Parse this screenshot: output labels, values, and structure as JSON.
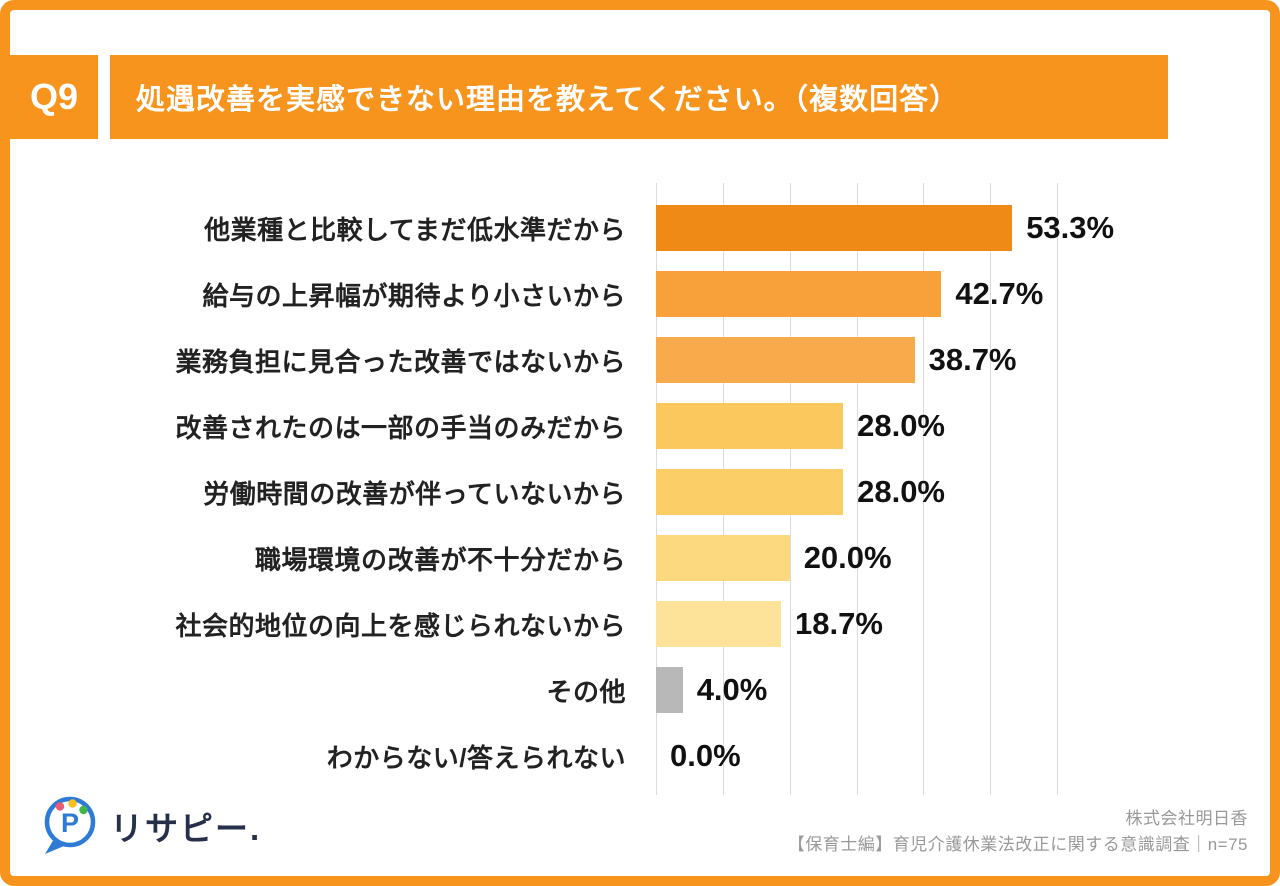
{
  "header": {
    "badge": "Q9",
    "title": "処遇改善を実感できない理由を教えてください。（複数回答）"
  },
  "colors": {
    "accent_orange": "#F7941D",
    "grid": "#DBDBDB",
    "label_text": "#222222",
    "value_text": "#111111",
    "footer_text": "#999999",
    "logo_blue": "#2E7BD6"
  },
  "chart_data": {
    "type": "bar",
    "orientation": "horizontal",
    "title": "処遇改善を実感できない理由を教えてください。（複数回答）",
    "categories": [
      "他業種と比較してまだ低水準だから",
      "給与の上昇幅が期待より小さいから",
      "業務負担に見合った改善ではないから",
      "改善されたのは一部の手当のみだから",
      "労働時間の改善が伴っていないから",
      "職場環境の改善が不十分だから",
      "社会的地位の向上を感じられないから",
      "その他",
      "わからない/答えられない"
    ],
    "values": [
      53.3,
      42.7,
      38.7,
      28.0,
      28.0,
      20.0,
      18.7,
      4.0,
      0.0
    ],
    "value_labels": [
      "53.3%",
      "42.7%",
      "38.7%",
      "28.0%",
      "28.0%",
      "20.0%",
      "18.7%",
      "4.0%",
      "0.0%"
    ],
    "bar_colors": [
      "#F08A17",
      "#F8A13B",
      "#F9AA4B",
      "#FBC85E",
      "#FBCE68",
      "#FCD87E",
      "#FDE29A",
      "#B8B8B8",
      "#B8B8B8"
    ],
    "xlim": [
      0,
      60
    ],
    "gridline_interval": 10,
    "grid": "vertical-gridlines",
    "legend": "none",
    "xlabel": "",
    "ylabel": ""
  },
  "footer": {
    "logo_text": "リサピー.",
    "company": "株式会社明日香",
    "caption": "【保育士編】育児介護休業法改正に関する意識調査｜n=75"
  }
}
